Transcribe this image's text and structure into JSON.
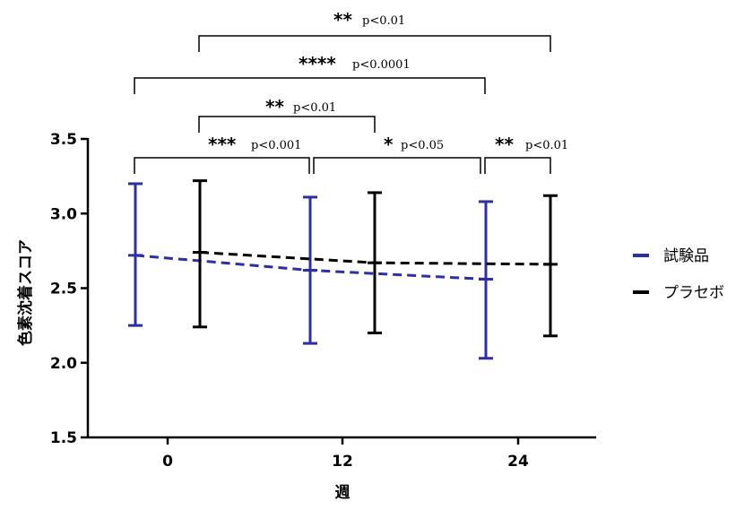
{
  "chart_data": {
    "type": "line",
    "xlabel": "週",
    "ylabel": "色素沈着スコア",
    "ylim": [
      1.5,
      3.5
    ],
    "yticks": [
      "1.5",
      "2.0",
      "2.5",
      "3.0",
      "3.5"
    ],
    "categories": [
      "0",
      "12",
      "24"
    ],
    "legend_position": "right",
    "grid": false,
    "series": [
      {
        "name": "試験品",
        "color": "#2e2ea6",
        "line_style": "dashed",
        "mean": [
          2.72,
          2.62,
          2.56
        ],
        "upper": [
          3.2,
          3.11,
          3.08
        ],
        "lower": [
          2.25,
          2.13,
          2.03
        ]
      },
      {
        "name": "プラセボ",
        "color": "#000000",
        "line_style": "dashed",
        "mean": [
          2.74,
          2.67,
          2.66
        ],
        "upper": [
          3.22,
          3.14,
          3.12
        ],
        "lower": [
          2.24,
          2.2,
          2.18
        ]
      }
    ],
    "significance": [
      {
        "stars": "**",
        "p": "p<0.01",
        "from": "プラセボ 0",
        "to": "プラセボ 24"
      },
      {
        "stars": "****",
        "p": "p<0.0001",
        "from": "試験品 0",
        "to": "試験品 24"
      },
      {
        "stars": "**",
        "p": "p<0.01",
        "from": "プラセボ 0",
        "to": "プラセボ 12"
      },
      {
        "stars": "***",
        "p": "p<0.001",
        "from": "試験品 0",
        "to": "試験品 12"
      },
      {
        "stars": "*",
        "p": "p<0.05",
        "from": "試験品 12",
        "to": "試験品 24"
      },
      {
        "stars": "**",
        "p": "p<0.01",
        "from": "試験品 24",
        "to": "プラセボ 24"
      }
    ]
  }
}
